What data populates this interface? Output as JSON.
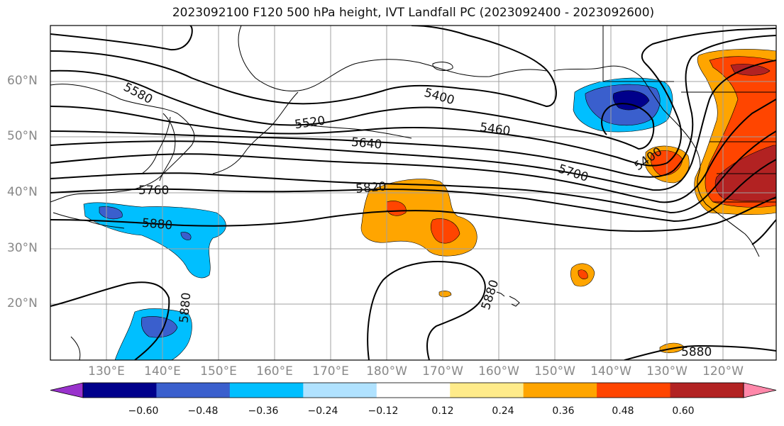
{
  "title": "2023092100 F120 500 hPa height, IVT Landfall PC (2023092400 - 2023092600)",
  "lat_labels": [
    "60°N",
    "50°N",
    "40°N",
    "30°N",
    "20°N"
  ],
  "lon_labels": [
    "130°E",
    "140°E",
    "150°E",
    "160°E",
    "170°E",
    "180°W",
    "170°W",
    "160°W",
    "150°W",
    "140°W",
    "130°W",
    "120°W"
  ],
  "contour_labels": [
    "5580",
    "5520",
    "5400",
    "5460",
    "5640",
    "5400",
    "5700",
    "5760",
    "5820",
    "5880",
    "5880",
    "5880",
    "5880"
  ],
  "colorbar": {
    "ticks": [
      "−0.60",
      "−0.48",
      "−0.36",
      "−0.24",
      "−0.12",
      "0.12",
      "0.24",
      "0.36",
      "0.48",
      "0.60"
    ],
    "colors": [
      "#9932cc",
      "#00008b",
      "#3a5fcd",
      "#00bfff",
      "#b0e2ff",
      "#ffffff",
      "#ffeb8a",
      "#ffa500",
      "#ff4500",
      "#b22222",
      "#ff88aa"
    ]
  }
}
